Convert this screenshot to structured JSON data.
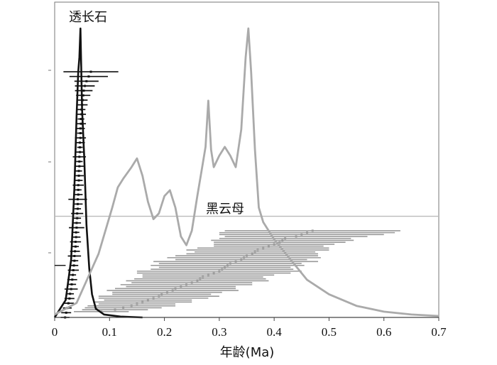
{
  "chart_data": {
    "type": "line",
    "xlabel": "年龄(Ma)",
    "ylabel": "",
    "xlim": [
      0,
      0.7
    ],
    "xticks": [
      "0",
      "0.1",
      "0.2",
      "0.3",
      "0.4",
      "0.5",
      "0.6",
      "0.7"
    ],
    "xtick_values": [
      0,
      0.1,
      0.2,
      0.3,
      0.4,
      0.5,
      0.6,
      0.7
    ],
    "ylim": [
      0,
      1
    ],
    "grid": false,
    "series": [
      {
        "name": "透长石",
        "color": "#111111",
        "x": [
          0.0,
          0.02,
          0.03,
          0.036,
          0.04,
          0.043,
          0.045,
          0.047,
          0.05,
          0.054,
          0.058,
          0.063,
          0.068,
          0.075,
          0.09,
          0.12,
          0.16
        ],
        "y": [
          0.0,
          0.06,
          0.2,
          0.45,
          0.7,
          0.85,
          0.9,
          1.0,
          0.72,
          0.55,
          0.32,
          0.17,
          0.08,
          0.03,
          0.01,
          0.003,
          0.0
        ]
      },
      {
        "name": "黑云母",
        "color": "#aaaaaa",
        "x": [
          0.0,
          0.04,
          0.08,
          0.105,
          0.115,
          0.125,
          0.14,
          0.15,
          0.16,
          0.17,
          0.18,
          0.19,
          0.2,
          0.21,
          0.22,
          0.23,
          0.24,
          0.25,
          0.26,
          0.268,
          0.275,
          0.28,
          0.285,
          0.29,
          0.3,
          0.31,
          0.32,
          0.33,
          0.34,
          0.348,
          0.353,
          0.358,
          0.365,
          0.372,
          0.38,
          0.4,
          0.43,
          0.46,
          0.5,
          0.55,
          0.6,
          0.65,
          0.7
        ],
        "y": [
          0.01,
          0.05,
          0.22,
          0.38,
          0.45,
          0.48,
          0.52,
          0.55,
          0.49,
          0.4,
          0.34,
          0.36,
          0.42,
          0.44,
          0.38,
          0.28,
          0.25,
          0.3,
          0.42,
          0.51,
          0.59,
          0.75,
          0.58,
          0.52,
          0.56,
          0.59,
          0.56,
          0.52,
          0.65,
          0.9,
          1.0,
          0.85,
          0.58,
          0.38,
          0.33,
          0.27,
          0.2,
          0.13,
          0.08,
          0.04,
          0.02,
          0.01,
          0.005
        ]
      }
    ],
    "series_labels": [
      "透长石",
      "黑云母"
    ],
    "errorbars": [
      {
        "series": "透长石",
        "color": "#111111",
        "ages": [
          0.019,
          0.021,
          0.023,
          0.025,
          0.027,
          0.028,
          0.03,
          0.031,
          0.032,
          0.033,
          0.034,
          0.035,
          0.036,
          0.036,
          0.037,
          0.038,
          0.038,
          0.039,
          0.039,
          0.04,
          0.04,
          0.041,
          0.041,
          0.042,
          0.042,
          0.042,
          0.043,
          0.043,
          0.043,
          0.044,
          0.044,
          0.044,
          0.045,
          0.045,
          0.045,
          0.046,
          0.046,
          0.046,
          0.047,
          0.047,
          0.047,
          0.048,
          0.048,
          0.049,
          0.049,
          0.05,
          0.051,
          0.052,
          0.053,
          0.055,
          0.058,
          0.062,
          0.066
        ],
        "errors": [
          0.008,
          0.009,
          0.008,
          0.01,
          0.009,
          0.007,
          0.012,
          0.008,
          0.009,
          0.006,
          0.01,
          0.008,
          0.007,
          0.012,
          0.009,
          0.006,
          0.01,
          0.008,
          0.006,
          0.014,
          0.008,
          0.007,
          0.011,
          0.006,
          0.009,
          0.017,
          0.008,
          0.006,
          0.01,
          0.007,
          0.009,
          0.006,
          0.008,
          0.006,
          0.012,
          0.007,
          0.005,
          0.009,
          0.01,
          0.006,
          0.008,
          0.009,
          0.006,
          0.008,
          0.007,
          0.01,
          0.009,
          0.013,
          0.016,
          0.018,
          0.022,
          0.035,
          0.05
        ]
      },
      {
        "series": "黑云母",
        "color": "#999999",
        "ages": [
          0.085,
          0.11,
          0.125,
          0.14,
          0.15,
          0.16,
          0.17,
          0.18,
          0.19,
          0.195,
          0.205,
          0.215,
          0.22,
          0.23,
          0.24,
          0.25,
          0.26,
          0.265,
          0.27,
          0.28,
          0.29,
          0.3,
          0.305,
          0.31,
          0.315,
          0.32,
          0.33,
          0.34,
          0.345,
          0.35,
          0.36,
          0.365,
          0.37,
          0.38,
          0.39,
          0.4,
          0.41,
          0.415,
          0.42,
          0.44,
          0.45,
          0.46,
          0.47
        ],
        "errors": [
          0.05,
          0.06,
          0.07,
          0.08,
          0.07,
          0.09,
          0.08,
          0.1,
          0.11,
          0.09,
          0.1,
          0.12,
          0.11,
          0.1,
          0.12,
          0.11,
          0.13,
          0.12,
          0.11,
          0.12,
          0.14,
          0.15,
          0.13,
          0.12,
          0.14,
          0.13,
          0.15,
          0.12,
          0.14,
          0.13,
          0.12,
          0.11,
          0.13,
          0.12,
          0.1,
          0.11,
          0.12,
          0.13,
          0.12,
          0.13,
          0.15,
          0.16,
          0.16
        ]
      }
    ],
    "reference_lines": [
      {
        "y": 0.35,
        "color": "#bbbbbb"
      },
      {
        "y": 0.18,
        "xmax": 0.02,
        "color": "#111111"
      }
    ]
  }
}
